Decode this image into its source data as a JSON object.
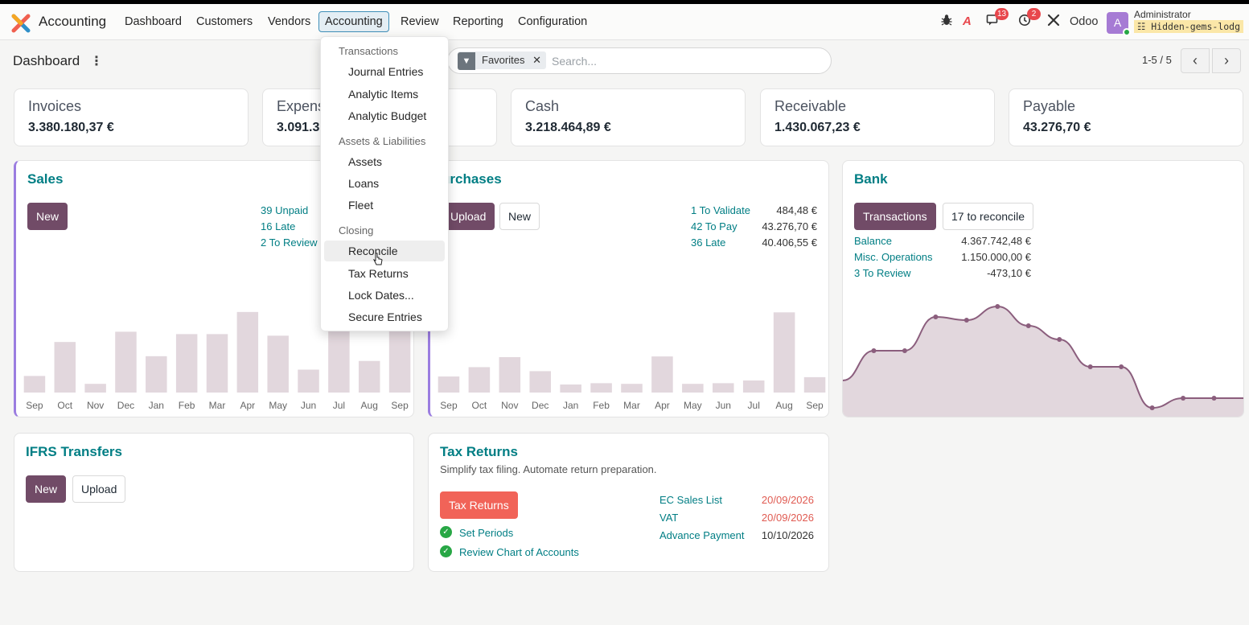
{
  "app": {
    "title": "Accounting"
  },
  "nav": {
    "items": [
      "Dashboard",
      "Customers",
      "Vendors",
      "Accounting",
      "Review",
      "Reporting",
      "Configuration"
    ],
    "active": "Accounting"
  },
  "system": {
    "messages_badge": "13",
    "activities_badge": "2",
    "company": "Odoo",
    "user_name": "Administrator",
    "avatar_letter": "A",
    "db_name": "Hidden-gems-lodg"
  },
  "controlpanel": {
    "breadcrumb": "Dashboard",
    "facet": "Favorites",
    "search_placeholder": "Search...",
    "pager": "1-5 / 5"
  },
  "kpis": [
    {
      "label": "Invoices",
      "value": "3.380.180,37 €"
    },
    {
      "label": "Expenses",
      "value": "3.091.3"
    },
    {
      "label": "Cash",
      "value": "3.218.464,89 €"
    },
    {
      "label": "Receivable",
      "value": "1.430.067,23 €"
    },
    {
      "label": "Payable",
      "value": "43.276,70 €"
    }
  ],
  "sales": {
    "title": "Sales",
    "new_label": "New",
    "stats": [
      {
        "label": "39 Unpaid"
      },
      {
        "label": "16 Late"
      },
      {
        "label": "2 To Review"
      }
    ]
  },
  "purchases": {
    "title": "urchases",
    "upload_label": "Upload",
    "new_label": "New",
    "stats": [
      {
        "label": "1 To Validate",
        "value": "484,48 €"
      },
      {
        "label": "42 To Pay",
        "value": "43.276,70 €"
      },
      {
        "label": "36 Late",
        "value": "40.406,55 €"
      }
    ]
  },
  "bank": {
    "title": "Bank",
    "transactions_label": "Transactions",
    "reconcile_label": "17 to reconcile",
    "stats": [
      {
        "label": "Balance",
        "value": "4.367.742,48 €"
      },
      {
        "label": "Misc. Operations",
        "value": "1.150.000,00 €"
      },
      {
        "label": "3 To Review",
        "value": "-473,10 €"
      }
    ]
  },
  "ifrs": {
    "title": "IFRS Transfers",
    "new_label": "New",
    "upload_label": "Upload"
  },
  "tax": {
    "title": "Tax Returns",
    "subtitle": "Simplify tax filing. Automate return preparation.",
    "button_label": "Tax Returns",
    "checks": [
      "Set Periods",
      "Review Chart of Accounts"
    ],
    "deadlines": [
      {
        "label": "EC Sales List",
        "date": "20/09/2026",
        "overdue": true
      },
      {
        "label": "VAT",
        "date": "20/09/2026",
        "overdue": true
      },
      {
        "label": "Advance Payment",
        "date": "10/10/2026",
        "overdue": false
      }
    ]
  },
  "menu": {
    "sections": [
      {
        "header": "Transactions",
        "items": [
          "Journal Entries",
          "Analytic Items",
          "Analytic Budget"
        ]
      },
      {
        "header": "Assets & Liabilities",
        "items": [
          "Assets",
          "Loans",
          "Fleet"
        ]
      },
      {
        "header": "Closing",
        "items": [
          "Reconcile",
          "Tax Returns",
          "Lock Dates...",
          "Secure Entries"
        ]
      }
    ],
    "hovered": "Reconcile"
  },
  "colors": {
    "accent": "#714b67",
    "link": "#017e84",
    "bar": "#e2d7dd",
    "danger": "#f16358",
    "badge": "#e8474c"
  },
  "chart_data": [
    {
      "type": "bar",
      "title": "Sales",
      "categories": [
        "Sep",
        "Oct",
        "Nov",
        "Dec",
        "Jan",
        "Feb",
        "Mar",
        "Apr",
        "May",
        "Jun",
        "Jul",
        "Aug",
        "Sep"
      ],
      "values": [
        21,
        64,
        11,
        77,
        46,
        74,
        74,
        102,
        72,
        29,
        80,
        40,
        80
      ],
      "ylim": [
        0,
        110
      ],
      "color": "#e2d7dd"
    },
    {
      "type": "bar",
      "title": "Purchases",
      "categories": [
        "Sep",
        "Oct",
        "Nov",
        "Dec",
        "Jan",
        "Feb",
        "Mar",
        "Apr",
        "May",
        "Jun",
        "Jul",
        "Aug",
        "Sep"
      ],
      "values": [
        24,
        38,
        53,
        32,
        12,
        14,
        13,
        54,
        13,
        14,
        18,
        120,
        23
      ],
      "ylim": [
        0,
        130
      ],
      "color": "#e2d7dd"
    },
    {
      "type": "area",
      "title": "Bank",
      "values": [
        47,
        84,
        84,
        126,
        122,
        139,
        115,
        98,
        64,
        64,
        13,
        25,
        25,
        25
      ],
      "ylim": [
        0,
        160
      ],
      "color": "#e2d7dd",
      "line_color": "#8b5e7d"
    }
  ]
}
